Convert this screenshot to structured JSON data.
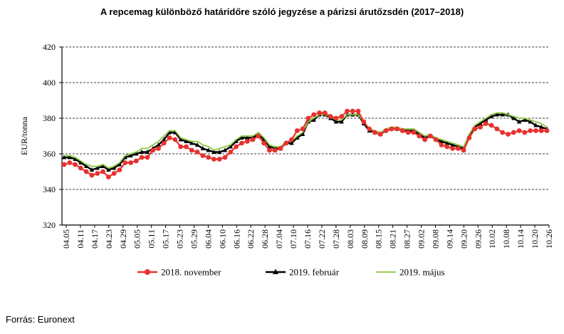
{
  "title": "A repcemag különböző határidőre szóló jegyzése a párizsi árutőzsdén (2017–2018)",
  "source": "Forrás: Euronext",
  "colors": {
    "november": "#e8312f",
    "februar": "#000000",
    "majus": "#8cc63f",
    "grid": "#000000"
  },
  "chart_data": {
    "type": "line",
    "ylabel": "EUR/tonna",
    "xlabel": "",
    "ylim": [
      320,
      420
    ],
    "yticks": [
      320,
      340,
      360,
      380,
      400,
      420
    ],
    "grid": true,
    "legend_position": "bottom",
    "x_tick_labels": [
      "04.05",
      "04.11",
      "04.17",
      "04.23",
      "04.29",
      "05.05",
      "05.11",
      "05.17",
      "05.23",
      "05.29",
      "06.04",
      "06.10",
      "06.16",
      "06.22",
      "06.28",
      "07.04",
      "07.10",
      "07.16",
      "07.22",
      "07.28",
      "08.03",
      "08.09",
      "08.15",
      "08.21",
      "08.27",
      "09.02",
      "09.08",
      "09.14",
      "09.20",
      "09.26",
      "10.02",
      "10.08",
      "10.14",
      "10.20",
      "10.26"
    ],
    "series": [
      {
        "name": "2018. november",
        "color": "#e8312f",
        "marker": "circle",
        "values": [
          354,
          355,
          354,
          352,
          350,
          348,
          349,
          350,
          347,
          349,
          351,
          355,
          355,
          356,
          358,
          358,
          362,
          363,
          366,
          369,
          368,
          364,
          364,
          362,
          361,
          359,
          358,
          357,
          357,
          358,
          361,
          364,
          366,
          367,
          368,
          370,
          366,
          362,
          362,
          363,
          366,
          368,
          373,
          374,
          380,
          382,
          383,
          383,
          381,
          380,
          381,
          384,
          384,
          384,
          378,
          374,
          372,
          371,
          373,
          374,
          374,
          373,
          372,
          372,
          370,
          368,
          370,
          368,
          365,
          364,
          363,
          363,
          362,
          369,
          374,
          375,
          377,
          376,
          374,
          372,
          371,
          372,
          373,
          372,
          373,
          373,
          373,
          373
        ]
      },
      {
        "name": "2019. február",
        "color": "#000000",
        "marker": "triangle",
        "values": [
          358,
          358,
          357,
          355,
          353,
          351,
          352,
          353,
          351,
          352,
          354,
          358,
          359,
          360,
          361,
          361,
          363,
          365,
          368,
          372,
          372,
          368,
          367,
          366,
          365,
          363,
          362,
          361,
          361,
          362,
          364,
          367,
          369,
          369,
          369,
          371,
          368,
          364,
          363,
          363,
          366,
          366,
          369,
          371,
          378,
          379,
          382,
          382,
          380,
          378,
          378,
          382,
          382,
          382,
          377,
          373,
          372,
          371,
          373,
          374,
          374,
          373,
          373,
          373,
          371,
          369,
          370,
          368,
          367,
          366,
          365,
          364,
          363,
          370,
          375,
          377,
          379,
          381,
          382,
          382,
          382,
          380,
          378,
          379,
          378,
          376,
          375,
          374
        ]
      },
      {
        "name": "2019. május",
        "color": "#8cc63f",
        "marker": "none",
        "values": [
          359,
          359,
          358,
          356,
          354,
          353,
          353,
          354,
          352,
          353,
          355,
          359,
          360,
          361,
          363,
          363,
          365,
          367,
          370,
          373,
          373,
          369,
          368,
          367,
          367,
          365,
          364,
          362,
          363,
          364,
          365,
          368,
          370,
          370,
          370,
          372,
          369,
          365,
          364,
          364,
          367,
          367,
          370,
          372,
          378,
          380,
          382,
          382,
          381,
          379,
          379,
          382,
          382,
          382,
          378,
          374,
          373,
          372,
          374,
          375,
          375,
          374,
          374,
          374,
          372,
          370,
          371,
          369,
          368,
          367,
          366,
          365,
          364,
          371,
          376,
          378,
          380,
          382,
          383,
          383,
          382,
          381,
          380,
          380,
          379,
          378,
          377,
          375
        ]
      }
    ]
  }
}
